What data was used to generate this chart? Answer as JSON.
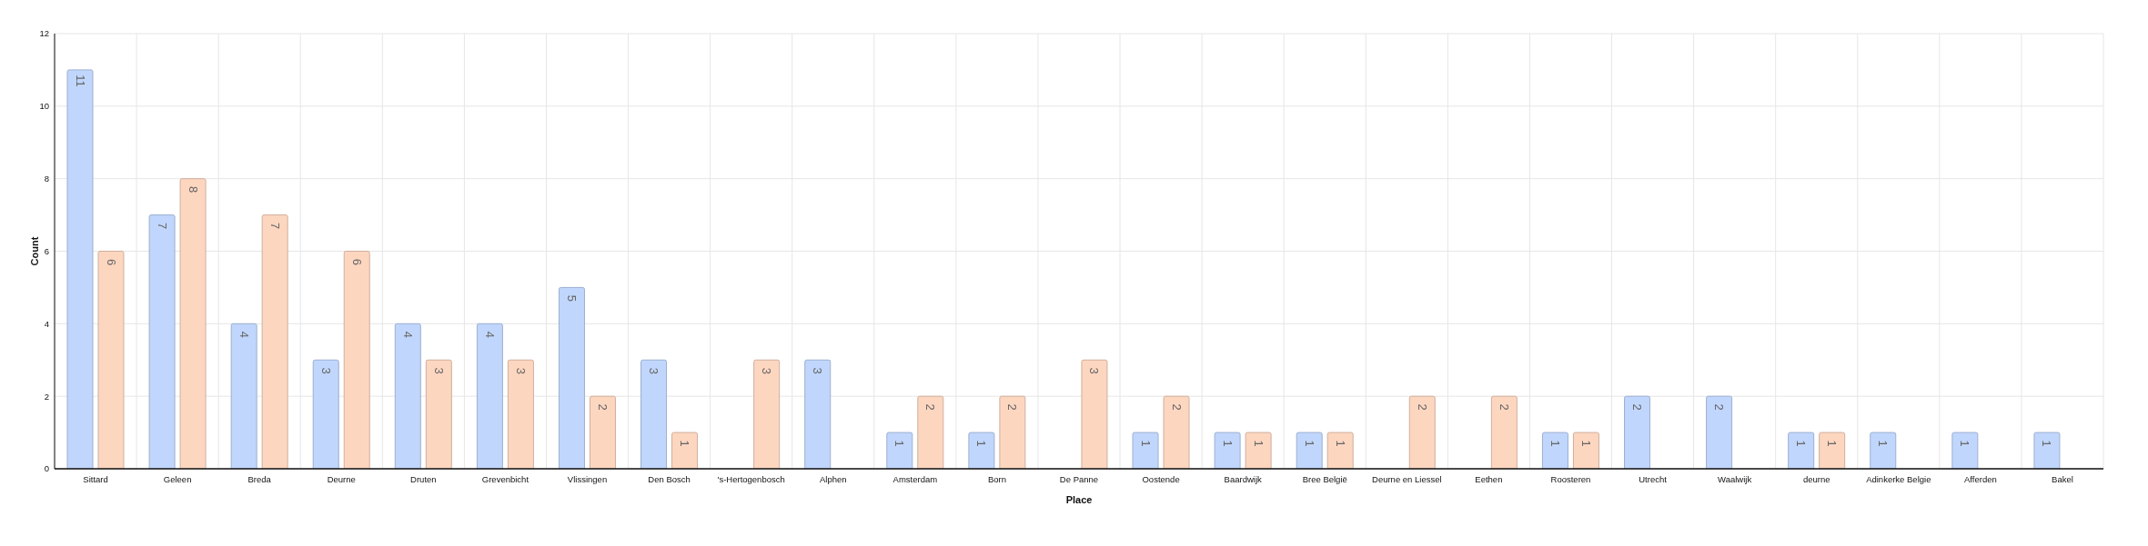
{
  "chart_data": {
    "type": "bar",
    "xlabel": "Place",
    "ylabel": "Count",
    "categories": [
      "Sittard",
      "Geleen",
      "Breda",
      "Deurne",
      "Druten",
      "Grevenbicht",
      "Vlissingen",
      "Den Bosch",
      "'s-Hertogenbosch",
      "Alphen",
      "Amsterdam",
      "Born",
      "De Panne",
      "Oostende",
      "Baardwijk",
      "Bree België",
      "Deurne en Liessel",
      "Eethen",
      "Roosteren",
      "Utrecht",
      "Waalwijk",
      "deurne",
      "Adinkerke Belgie",
      "Afferden",
      "Bakel"
    ],
    "series": [
      {
        "color": "#c0d6fc",
        "values": [
          11,
          7,
          4,
          3,
          4,
          4,
          5,
          3,
          null,
          3,
          1,
          1,
          null,
          1,
          1,
          1,
          null,
          null,
          1,
          2,
          2,
          1,
          1,
          1,
          1
        ]
      },
      {
        "color": "#fdd6c0",
        "values": [
          6,
          8,
          7,
          6,
          3,
          3,
          2,
          1,
          3,
          null,
          2,
          2,
          3,
          2,
          1,
          1,
          2,
          2,
          1,
          null,
          null,
          1,
          null,
          null,
          null
        ]
      }
    ],
    "ylim": [
      0,
      12
    ],
    "yticks": [
      0,
      2,
      4,
      6,
      8,
      10,
      12
    ],
    "grid": true,
    "data_labels": true
  }
}
